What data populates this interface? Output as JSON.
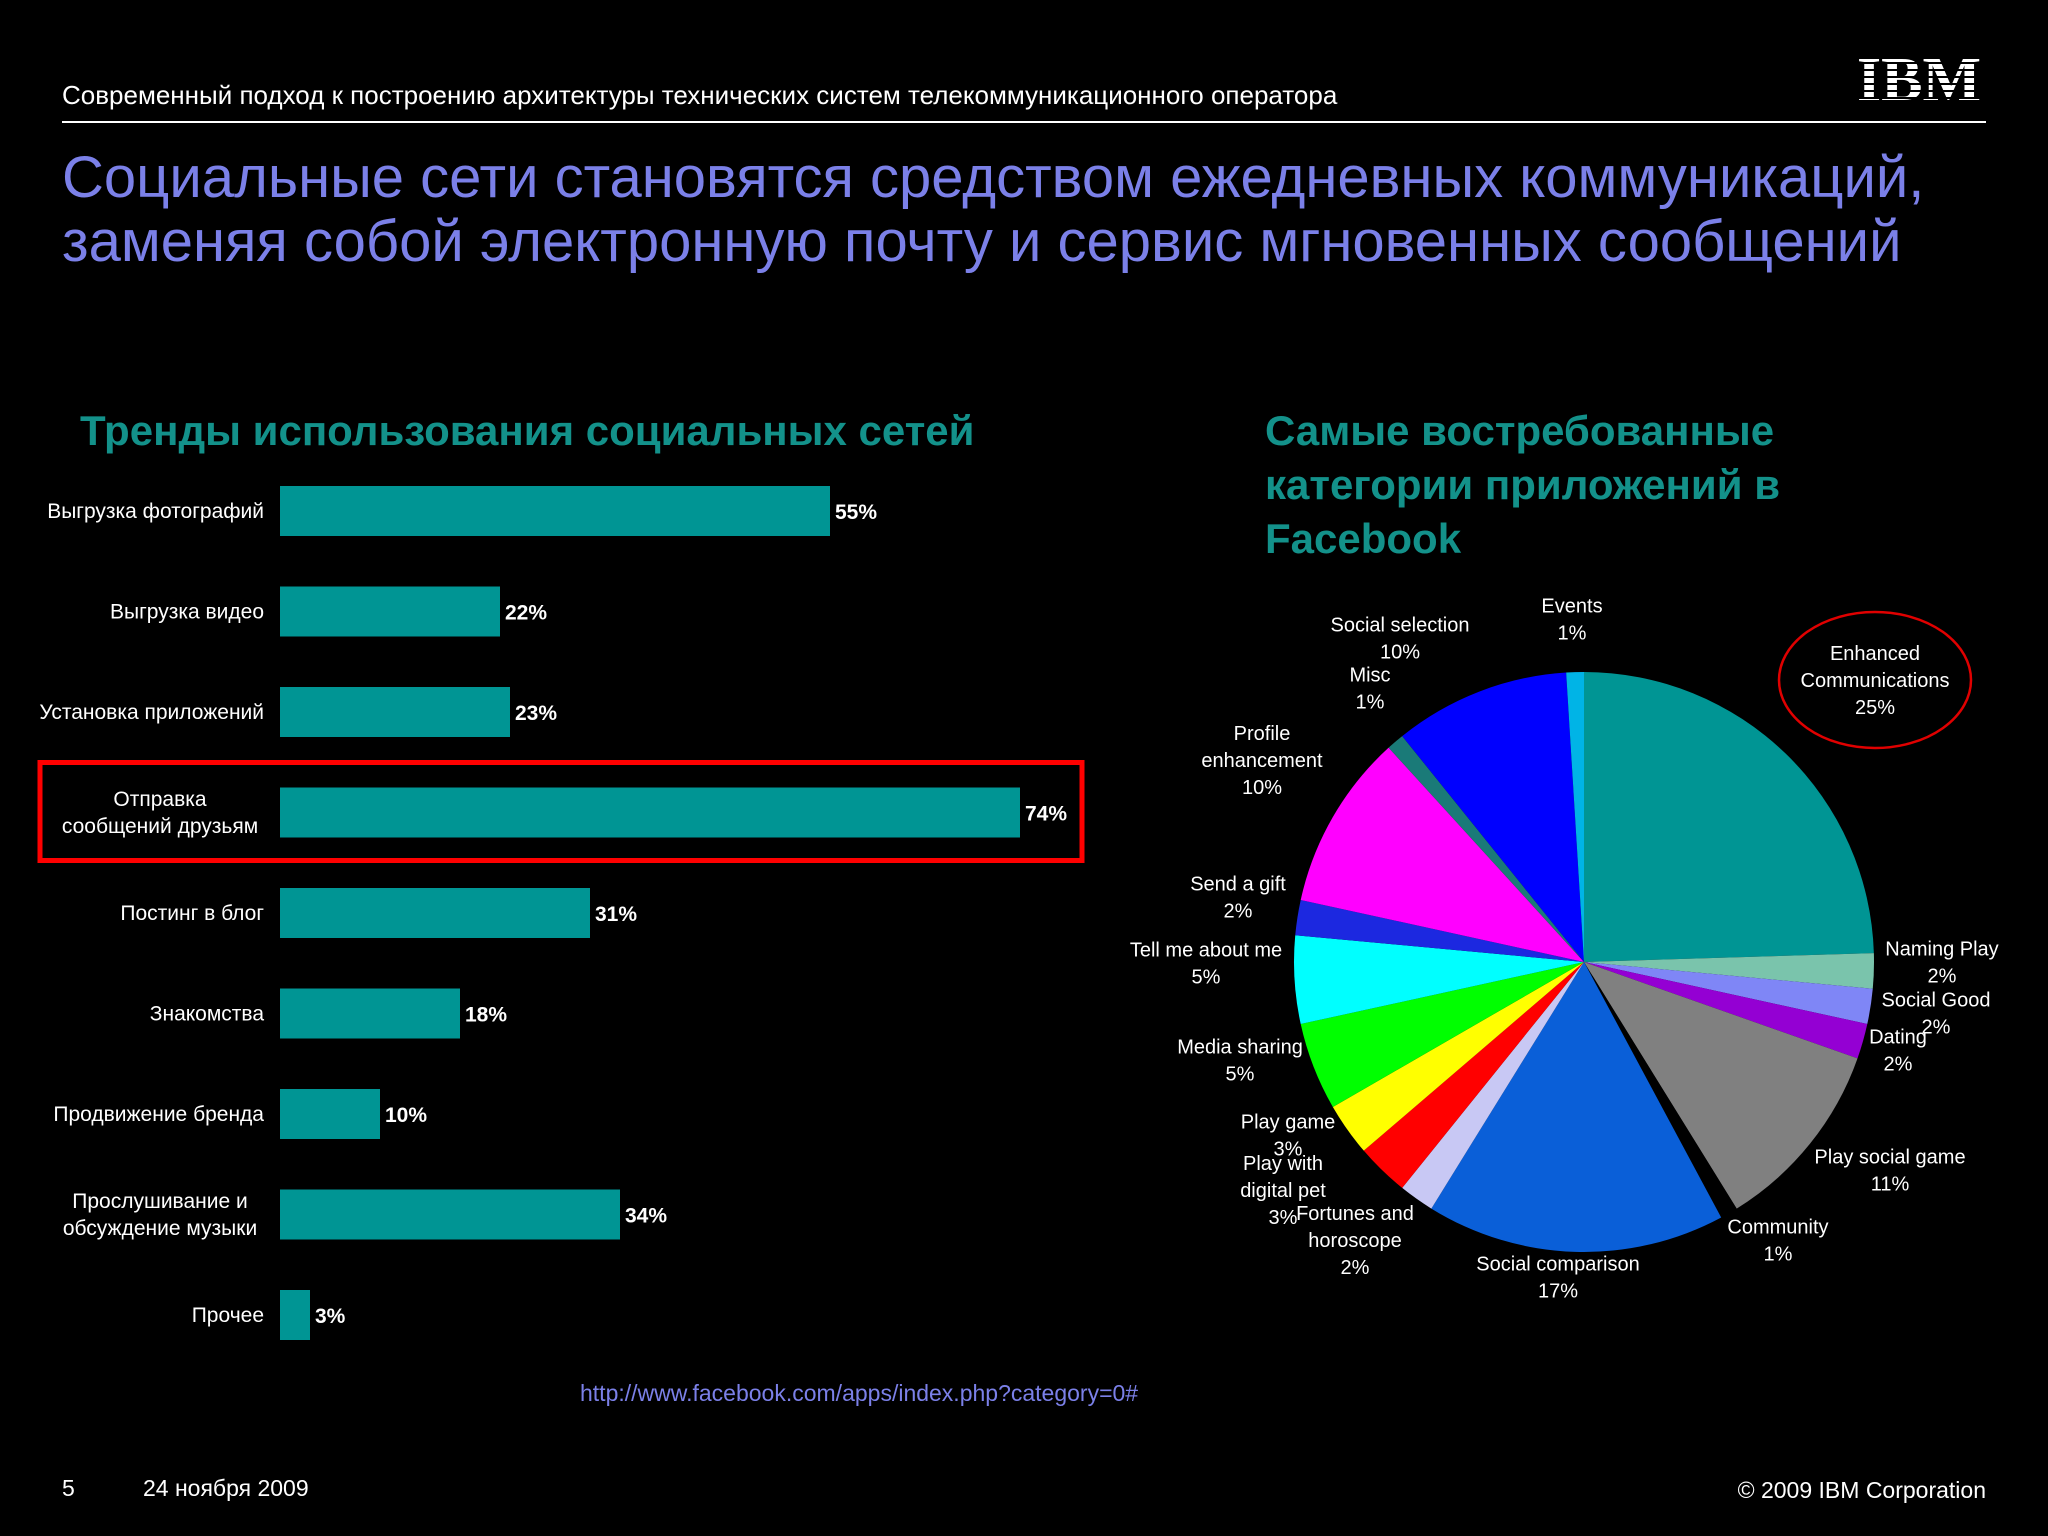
{
  "header": {
    "subtitle": "Современный подход к построению архитектуры технических систем телекоммуникационного оператора",
    "logo_text": "IBM"
  },
  "slide": {
    "title": "Социальные сети становятся средством ежедневных коммуникаций, заменяя собой электронную почту и сервис мгновенных сообщений"
  },
  "source_url": "http://www.facebook.com/apps/index.php?category=0#",
  "footer": {
    "page_number": "5",
    "date": "24 ноября 2009",
    "copyright": "© 2009 IBM Corporation"
  },
  "colors": {
    "title": "#7b80e8",
    "section_title": "#13918a",
    "bar": "#009594",
    "highlight": "#ff0000"
  },
  "chart_data": [
    {
      "type": "bar",
      "orientation": "horizontal",
      "title": "Тренды использования социальных сетей",
      "categories": [
        "Выгрузка фотографий",
        "Выгрузка видео",
        "Установка приложений",
        "Отправка сообщений друзьям",
        "Постинг в блог",
        "Знакомства",
        "Продвижение бренда",
        "Прослушивание и обсуждение музыки",
        "Прочее"
      ],
      "values": [
        55,
        22,
        23,
        74,
        31,
        18,
        10,
        34,
        3
      ],
      "value_labels": [
        "55%",
        "22%",
        "23%",
        "74%",
        "31%",
        "18%",
        "10%",
        "34%",
        "3%"
      ],
      "highlighted_category": "Отправка сообщений друзьям",
      "xlim": [
        0,
        100
      ],
      "grid": false
    },
    {
      "type": "pie",
      "title": "Самые востребованные категории приложений в Facebook",
      "slices": [
        {
          "label": "Enhanced Communications",
          "value": 25,
          "value_label": "25%",
          "color": "#009594",
          "circled": true
        },
        {
          "label": "Naming Play",
          "value": 2,
          "value_label": "2%",
          "color": "#7ac4ac"
        },
        {
          "label": "Social Good",
          "value": 2,
          "value_label": "2%",
          "color": "#7f86f6"
        },
        {
          "label": "Dating",
          "value": 2,
          "value_label": "2%",
          "color": "#9400d3"
        },
        {
          "label": "Play social game",
          "value": 11,
          "value_label": "11%",
          "color": "#808080"
        },
        {
          "label": "Community",
          "value": 1,
          "value_label": "1%",
          "color": "#000000"
        },
        {
          "label": "Social comparison",
          "value": 17,
          "value_label": "17%",
          "color": "#0a5fd8"
        },
        {
          "label": "Fortunes and horoscope",
          "value": 2,
          "value_label": "2%",
          "color": "#c8c8f4"
        },
        {
          "label": "Play with digital pet",
          "value": 3,
          "value_label": "3%",
          "color": "#ff0000"
        },
        {
          "label": "Play game",
          "value": 3,
          "value_label": "3%",
          "color": "#ffff00"
        },
        {
          "label": "Media sharing",
          "value": 5,
          "value_label": "5%",
          "color": "#00ff00"
        },
        {
          "label": "Tell me about me",
          "value": 5,
          "value_label": "5%",
          "color": "#00ffff"
        },
        {
          "label": "Send a gift",
          "value": 2,
          "value_label": "2%",
          "color": "#1c28e0"
        },
        {
          "label": "Profile enhancement",
          "value": 10,
          "value_label": "10%",
          "color": "#ff00ff"
        },
        {
          "label": "Misc",
          "value": 1,
          "value_label": "1%",
          "color": "#1a7a78"
        },
        {
          "label": "Social selection",
          "value": 10,
          "value_label": "10%",
          "color": "#0000ff"
        },
        {
          "label": "Events",
          "value": 1,
          "value_label": "1%",
          "color": "#00b4e6"
        }
      ]
    }
  ]
}
